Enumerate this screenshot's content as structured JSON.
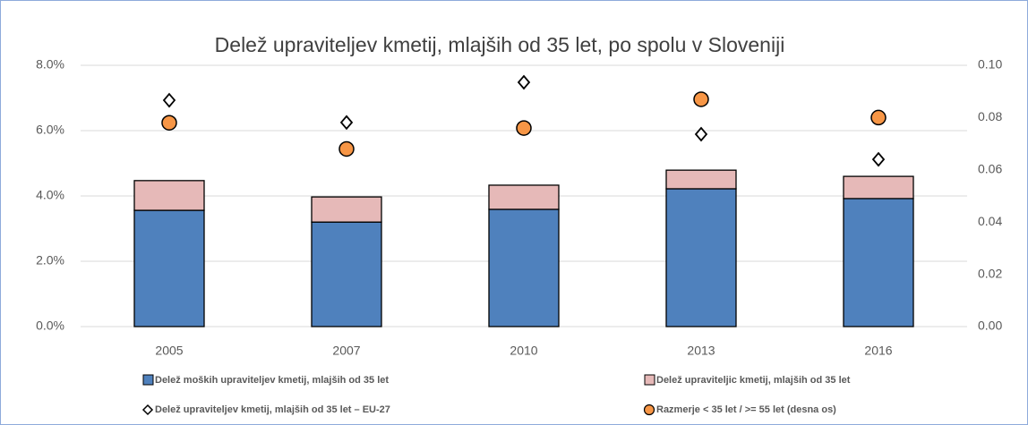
{
  "chart_data": {
    "type": "bar",
    "stacked": true,
    "title": "Delež upraviteljev kmetij, mlajših od 35 let, po spolu v Sloveniji",
    "categories": [
      "2005",
      "2007",
      "2010",
      "2013",
      "2016"
    ],
    "series": [
      {
        "name": "Delež moških upraviteljev kmetij, mlajših od 35 let",
        "type": "bar",
        "color": "#4f81bd",
        "values": [
          3.56,
          3.2,
          3.59,
          4.22,
          3.92
        ]
      },
      {
        "name": "Delež upraviteljic kmetij, mlajših od 35 let",
        "type": "bar",
        "color": "#e6b9b8",
        "values": [
          0.91,
          0.77,
          0.74,
          0.57,
          0.68
        ]
      },
      {
        "name": "Delež upraviteljev kmetij, mlajših od 35 let – EU-27",
        "type": "scatter",
        "marker": "diamond",
        "color": "#ffffff",
        "values": [
          6.93,
          6.25,
          7.48,
          5.89,
          5.12
        ]
      },
      {
        "name": "Razmerje < 35 let / >= 55 let (desna os)",
        "type": "scatter",
        "marker": "circle",
        "color": "#f79646",
        "axis": "y2",
        "values": [
          0.078,
          0.068,
          0.076,
          0.087,
          0.08
        ]
      }
    ],
    "ylim": [
      0,
      8
    ],
    "yticks": [
      {
        "value": 0,
        "label": "0.0%"
      },
      {
        "value": 2,
        "label": "2.0%"
      },
      {
        "value": 4,
        "label": "4.0%"
      },
      {
        "value": 6,
        "label": "6.0%"
      },
      {
        "value": 8,
        "label": "8.0%"
      }
    ],
    "y2lim": [
      0,
      0.1
    ],
    "y2ticks": [
      {
        "value": 0,
        "label": "0.00"
      },
      {
        "value": 0.02,
        "label": "0.02"
      },
      {
        "value": 0.04,
        "label": "0.04"
      },
      {
        "value": 0.06,
        "label": "0.06"
      },
      {
        "value": 0.08,
        "label": "0.08"
      },
      {
        "value": 0.1,
        "label": "0.10"
      }
    ],
    "grid": true
  }
}
